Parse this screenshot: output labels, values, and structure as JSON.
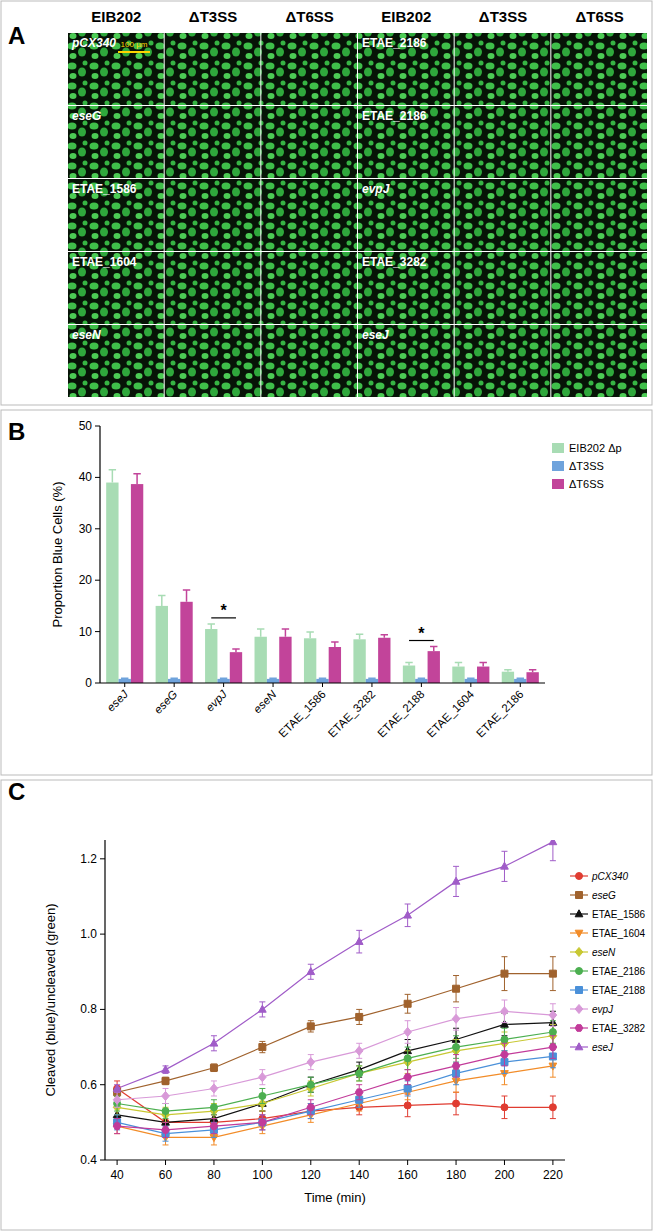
{
  "panel_a": {
    "label": "A",
    "column_headers": [
      "EIB202",
      "ΔT3SS",
      "ΔT6SS",
      "EIB202",
      "ΔT3SS",
      "ΔT6SS"
    ],
    "row_labels_left": [
      "pCX340",
      "eseG",
      "ETAE_1586",
      "ETAE_1604",
      "eseN"
    ],
    "row_labels_right": [
      "ETAE_2186",
      "ETAE_2186",
      "evpJ",
      "ETAE_3282",
      "eseJ"
    ],
    "scale_bar": "100 µm"
  },
  "chart_data": [
    {
      "type": "bar",
      "title": "B",
      "y_label": "Proportion Blue Cells (%)",
      "categories": [
        "eseJ",
        "eseG",
        "evpJ",
        "eseN",
        "ETAE_1586",
        "ETAE_3282",
        "ETAE_2188",
        "ETAE_1604",
        "ETAE_2186"
      ],
      "series": [
        {
          "name": "EIB202 Δp",
          "color": "#a8dcb4",
          "values": [
            39,
            15,
            10.5,
            9,
            8.7,
            8.5,
            3.4,
            3.2,
            2.2
          ],
          "errors": [
            2.5,
            2,
            1,
            1.5,
            1.2,
            1,
            0.6,
            0.8,
            0.4
          ]
        },
        {
          "name": "ΔT3SS",
          "color": "#6fa3dc",
          "values": [
            0.8,
            0.8,
            0.8,
            0.8,
            0.8,
            0.8,
            0.8,
            0.8,
            0.8
          ],
          "errors": [
            0.1,
            0.1,
            0.1,
            0.1,
            0.1,
            0.1,
            0.1,
            0.1,
            0.1
          ]
        },
        {
          "name": "ΔT6SS",
          "color": "#c2449a",
          "values": [
            38.7,
            15.8,
            6,
            9,
            7,
            8.8,
            6.2,
            3.2,
            2.1
          ],
          "errors": [
            2,
            2.3,
            0.6,
            1.5,
            1,
            0.6,
            0.9,
            0.8,
            0.5
          ]
        }
      ],
      "ylim": [
        0,
        50
      ],
      "yticks": [
        0,
        10,
        20,
        30,
        40,
        50
      ],
      "legend": "top-right",
      "annotations": [
        {
          "text": "*",
          "category": "evpJ",
          "from": "EIB202 Δp",
          "to": "ΔT6SS"
        },
        {
          "text": "*",
          "category": "ETAE_2188",
          "from": "EIB202 Δp",
          "to": "ΔT6SS"
        }
      ]
    },
    {
      "type": "line",
      "title": "C",
      "x_label": "Time (min)",
      "y_label": "Cleaved (blue)/uncleaved (green)",
      "x": [
        40,
        60,
        80,
        100,
        120,
        140,
        160,
        180,
        200,
        220
      ],
      "series": [
        {
          "name": "pCX340",
          "color": "#e03c31",
          "marker": "circle",
          "values": [
            0.59,
            0.5,
            0.5,
            0.51,
            0.53,
            0.54,
            0.545,
            0.55,
            0.54,
            0.54
          ],
          "errors": [
            0.02,
            0.02,
            0.02,
            0.02,
            0.02,
            0.02,
            0.03,
            0.03,
            0.03,
            0.03
          ]
        },
        {
          "name": "eseG",
          "color": "#a0622d",
          "marker": "square",
          "values": [
            0.58,
            0.61,
            0.645,
            0.7,
            0.755,
            0.78,
            0.815,
            0.855,
            0.895,
            0.895
          ],
          "errors": [
            0.01,
            0.01,
            0.01,
            0.015,
            0.015,
            0.02,
            0.025,
            0.035,
            0.045,
            0.045
          ]
        },
        {
          "name": "ETAE_1586",
          "color": "#111111",
          "marker": "triangle",
          "values": [
            0.52,
            0.5,
            0.51,
            0.55,
            0.6,
            0.64,
            0.69,
            0.72,
            0.76,
            0.765
          ],
          "errors": [
            0.02,
            0.02,
            0.02,
            0.02,
            0.02,
            0.02,
            0.03,
            0.03,
            0.03,
            0.03
          ]
        },
        {
          "name": "ETAE_1604",
          "color": "#f28c28",
          "marker": "triangle-down",
          "values": [
            0.49,
            0.46,
            0.46,
            0.49,
            0.52,
            0.55,
            0.58,
            0.61,
            0.63,
            0.65
          ],
          "errors": [
            0.02,
            0.02,
            0.02,
            0.02,
            0.02,
            0.02,
            0.02,
            0.03,
            0.03,
            0.03
          ]
        },
        {
          "name": "eseN",
          "color": "#c8c832",
          "marker": "diamond",
          "values": [
            0.54,
            0.52,
            0.53,
            0.55,
            0.59,
            0.63,
            0.66,
            0.69,
            0.71,
            0.73
          ],
          "errors": [
            0.02,
            0.02,
            0.02,
            0.02,
            0.02,
            0.02,
            0.03,
            0.03,
            0.03,
            0.03
          ]
        },
        {
          "name": "ETAE_2186",
          "color": "#4caf50",
          "marker": "circle",
          "values": [
            0.55,
            0.53,
            0.54,
            0.57,
            0.6,
            0.63,
            0.67,
            0.7,
            0.72,
            0.74
          ],
          "errors": [
            0.02,
            0.02,
            0.02,
            0.02,
            0.02,
            0.02,
            0.03,
            0.03,
            0.03,
            0.03
          ]
        },
        {
          "name": "ETAE_2188",
          "color": "#4a90d9",
          "marker": "square",
          "values": [
            0.5,
            0.47,
            0.48,
            0.5,
            0.53,
            0.56,
            0.59,
            0.63,
            0.66,
            0.675
          ],
          "errors": [
            0.02,
            0.02,
            0.02,
            0.02,
            0.02,
            0.02,
            0.02,
            0.03,
            0.03,
            0.03
          ]
        },
        {
          "name": "evpJ",
          "color": "#d899d8",
          "marker": "diamond",
          "values": [
            0.56,
            0.57,
            0.59,
            0.62,
            0.66,
            0.69,
            0.74,
            0.775,
            0.795,
            0.785
          ],
          "errors": [
            0.02,
            0.02,
            0.02,
            0.02,
            0.02,
            0.02,
            0.03,
            0.03,
            0.03,
            0.03
          ]
        },
        {
          "name": "ETAE_3282",
          "color": "#c23b9a",
          "marker": "hexagon",
          "values": [
            0.49,
            0.48,
            0.49,
            0.5,
            0.54,
            0.58,
            0.62,
            0.65,
            0.68,
            0.7
          ],
          "errors": [
            0.02,
            0.02,
            0.02,
            0.02,
            0.02,
            0.02,
            0.02,
            0.03,
            0.03,
            0.03
          ]
        },
        {
          "name": "eseJ",
          "color": "#a05cc8",
          "marker": "triangle",
          "values": [
            0.59,
            0.64,
            0.71,
            0.8,
            0.9,
            0.98,
            1.05,
            1.14,
            1.18,
            1.245
          ],
          "errors": [
            0.01,
            0.01,
            0.02,
            0.02,
            0.02,
            0.03,
            0.03,
            0.04,
            0.04,
            0.05
          ]
        }
      ],
      "xlim": [
        35,
        225
      ],
      "xticks": [
        40,
        60,
        80,
        100,
        120,
        140,
        160,
        180,
        200,
        220
      ],
      "ylim": [
        0.4,
        1.25
      ],
      "yticks": [
        0.4,
        0.6,
        0.8,
        {
          "value": 1,
          "label": "1.0"
        },
        1.2
      ],
      "legend": "right",
      "line_style": "solid"
    }
  ]
}
